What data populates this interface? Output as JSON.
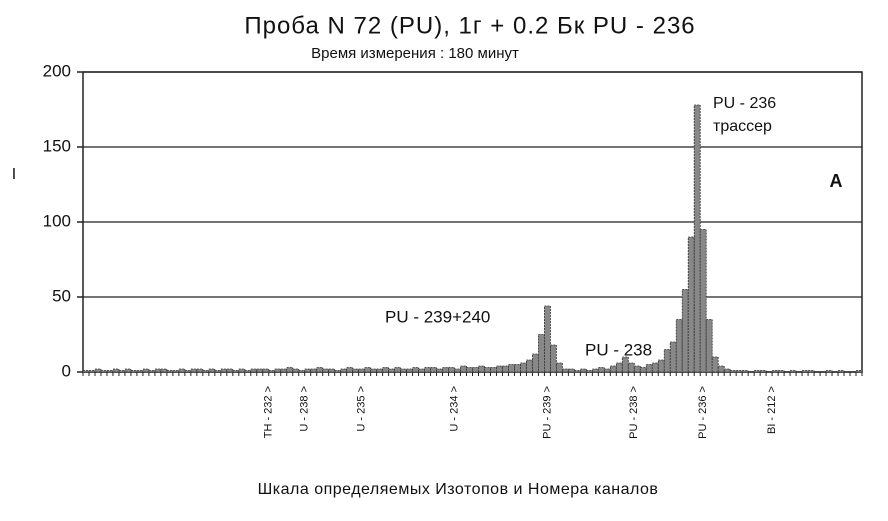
{
  "chart_data": {
    "type": "histogram",
    "title": "Проба N 72 (PU), 1г + 0.2 Бк PU - 236",
    "subtitle": "Время измерения : 180 минут",
    "y_label": "I",
    "x_label": "Шкала определяемых Изотопов и Номера каналов",
    "panel_label": "A",
    "annotations": [
      "PU - 236",
      "трассер",
      "PU - 239+240",
      "PU - 238"
    ],
    "ylim": [
      0,
      200
    ],
    "yticks": [
      0,
      50,
      100,
      150,
      200
    ],
    "grid": true,
    "xlim": [
      0,
      130
    ],
    "color": "#333333",
    "bins": [
      0,
      1,
      2,
      3,
      4,
      5,
      6,
      7,
      8,
      9,
      10,
      11,
      12,
      13,
      14,
      15,
      16,
      17,
      18,
      19,
      20,
      21,
      22,
      23,
      24,
      25,
      26,
      27,
      28,
      29,
      30,
      31,
      32,
      33,
      34,
      35,
      36,
      37,
      38,
      39,
      40,
      41,
      42,
      43,
      44,
      45,
      46,
      47,
      48,
      49,
      50,
      51,
      52,
      53,
      54,
      55,
      56,
      57,
      58,
      59,
      60,
      61,
      62,
      63,
      64,
      65,
      66,
      67,
      68,
      69,
      70,
      71,
      72,
      73,
      74,
      75,
      76,
      77,
      78,
      79,
      80,
      81,
      82,
      83,
      84,
      85,
      86,
      87,
      88,
      89,
      90,
      91,
      92,
      93,
      94,
      95,
      96,
      97,
      98,
      99,
      100,
      101,
      102,
      103,
      104,
      105,
      106,
      107,
      108,
      109,
      110,
      111,
      112,
      113,
      114,
      115,
      116,
      117,
      118,
      119,
      120,
      121,
      122,
      123,
      124,
      125,
      126,
      127,
      128,
      129,
      130
    ],
    "values": [
      1,
      1,
      2,
      1,
      1,
      2,
      1,
      2,
      1,
      1,
      2,
      1,
      2,
      2,
      1,
      1,
      2,
      1,
      2,
      2,
      1,
      2,
      1,
      2,
      2,
      1,
      2,
      1,
      2,
      2,
      2,
      1,
      2,
      2,
      3,
      2,
      1,
      2,
      2,
      3,
      2,
      2,
      1,
      2,
      3,
      2,
      2,
      3,
      2,
      2,
      3,
      2,
      3,
      2,
      2,
      3,
      2,
      3,
      3,
      2,
      3,
      3,
      2,
      4,
      3,
      3,
      4,
      3,
      3,
      4,
      4,
      5,
      5,
      6,
      8,
      12,
      25,
      44,
      18,
      6,
      2,
      2,
      1,
      2,
      1,
      2,
      3,
      2,
      4,
      6,
      10,
      6,
      4,
      3,
      5,
      6,
      8,
      15,
      20,
      35,
      55,
      90,
      178,
      95,
      35,
      10,
      4,
      2,
      1,
      1,
      1,
      0,
      1,
      1,
      0,
      1,
      1,
      0,
      1,
      0,
      1,
      1,
      0,
      0,
      1,
      0,
      1,
      0,
      0,
      1
    ],
    "markers": [
      {
        "label": "TH - 232 >",
        "x": 31
      },
      {
        "label": "U - 238 >",
        "x": 37
      },
      {
        "label": "U - 235 >",
        "x": 46.5
      },
      {
        "label": "U - 234 >",
        "x": 62
      },
      {
        "label": "PU - 239 >",
        "x": 77.5
      },
      {
        "label": "PU - 238 >",
        "x": 92
      },
      {
        "label": "PU - 236 >",
        "x": 103.5
      },
      {
        "label": "BI - 212 >",
        "x": 115
      }
    ]
  }
}
